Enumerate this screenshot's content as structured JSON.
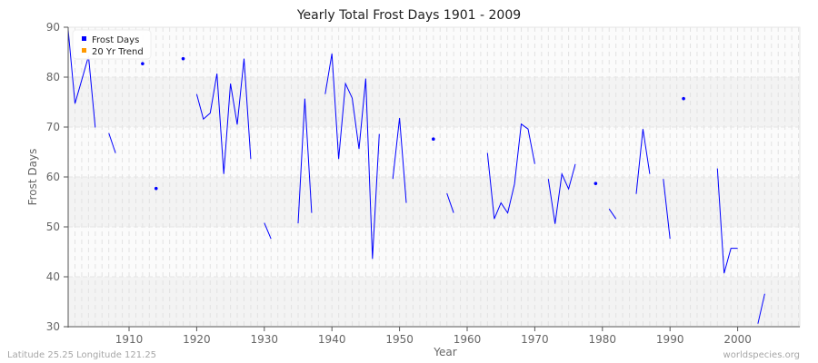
{
  "chart_data": {
    "type": "line",
    "title": "Yearly Total Frost Days 1901 - 2009",
    "xlabel": "Year",
    "ylabel": "Frost Days",
    "xlim": [
      1901,
      2009
    ],
    "ylim": [
      30,
      90
    ],
    "x_ticks": [
      1910,
      1920,
      1930,
      1940,
      1950,
      1960,
      1970,
      1980,
      1990,
      2000
    ],
    "y_ticks": [
      30,
      40,
      50,
      60,
      70,
      80,
      90
    ],
    "grid": true,
    "legend_position": "top-left",
    "legend": [
      {
        "label": "Frost Days",
        "color": "#0000ff"
      },
      {
        "label": "20 Yr Trend",
        "color": "#ff9900"
      }
    ],
    "series": [
      {
        "name": "Frost Days",
        "color": "#0000ff",
        "points": [
          [
            1901,
            89.5
          ],
          [
            1902,
            74.7
          ],
          [
            1903,
            79.4
          ],
          [
            1904,
            84.2
          ],
          [
            1905,
            69.9
          ],
          [
            1906,
            null
          ],
          [
            1907,
            68.8
          ],
          [
            1908,
            64.8
          ],
          [
            1909,
            null
          ],
          [
            1910,
            null
          ],
          [
            1911,
            null
          ],
          [
            1912,
            82.7
          ],
          [
            1913,
            null
          ],
          [
            1914,
            57.7
          ],
          [
            1915,
            null
          ],
          [
            1916,
            null
          ],
          [
            1917,
            null
          ],
          [
            1918,
            83.7
          ],
          [
            1919,
            null
          ],
          [
            1920,
            76.6
          ],
          [
            1921,
            71.6
          ],
          [
            1922,
            72.8
          ],
          [
            1923,
            80.7
          ],
          [
            1924,
            60.6
          ],
          [
            1925,
            78.7
          ],
          [
            1926,
            70.5
          ],
          [
            1927,
            83.7
          ],
          [
            1928,
            63.6
          ],
          [
            1929,
            null
          ],
          [
            1930,
            50.8
          ],
          [
            1931,
            47.6
          ],
          [
            1932,
            null
          ],
          [
            1933,
            null
          ],
          [
            1934,
            null
          ],
          [
            1935,
            50.7
          ],
          [
            1936,
            75.7
          ],
          [
            1937,
            52.8
          ],
          [
            1938,
            null
          ],
          [
            1939,
            76.6
          ],
          [
            1940,
            84.7
          ],
          [
            1941,
            63.6
          ],
          [
            1942,
            78.7
          ],
          [
            1943,
            75.8
          ],
          [
            1944,
            65.6
          ],
          [
            1945,
            79.7
          ],
          [
            1946,
            43.6
          ],
          [
            1947,
            68.6
          ],
          [
            1948,
            null
          ],
          [
            1949,
            59.6
          ],
          [
            1950,
            71.8
          ],
          [
            1951,
            54.8
          ],
          [
            1952,
            null
          ],
          [
            1953,
            null
          ],
          [
            1954,
            null
          ],
          [
            1955,
            67.6
          ],
          [
            1956,
            null
          ],
          [
            1957,
            56.7
          ],
          [
            1958,
            52.8
          ],
          [
            1959,
            null
          ],
          [
            1960,
            null
          ],
          [
            1961,
            null
          ],
          [
            1962,
            null
          ],
          [
            1963,
            64.8
          ],
          [
            1964,
            51.6
          ],
          [
            1965,
            54.8
          ],
          [
            1966,
            52.8
          ],
          [
            1967,
            58.6
          ],
          [
            1968,
            70.6
          ],
          [
            1969,
            69.6
          ],
          [
            1970,
            62.6
          ],
          [
            1971,
            null
          ],
          [
            1972,
            59.6
          ],
          [
            1973,
            50.6
          ],
          [
            1974,
            60.6
          ],
          [
            1975,
            57.6
          ],
          [
            1976,
            62.6
          ],
          [
            1977,
            null
          ],
          [
            1978,
            null
          ],
          [
            1979,
            58.7
          ],
          [
            1980,
            null
          ],
          [
            1981,
            53.6
          ],
          [
            1982,
            51.6
          ],
          [
            1983,
            null
          ],
          [
            1984,
            null
          ],
          [
            1985,
            56.6
          ],
          [
            1986,
            69.6
          ],
          [
            1987,
            60.6
          ],
          [
            1988,
            null
          ],
          [
            1989,
            59.6
          ],
          [
            1990,
            47.6
          ],
          [
            1991,
            null
          ],
          [
            1992,
            75.7
          ],
          [
            1993,
            null
          ],
          [
            1994,
            null
          ],
          [
            1995,
            null
          ],
          [
            1996,
            null
          ],
          [
            1997,
            61.7
          ],
          [
            1998,
            40.7
          ],
          [
            1999,
            45.7
          ],
          [
            2000,
            45.7
          ],
          [
            2001,
            null
          ],
          [
            2002,
            null
          ],
          [
            2003,
            30.6
          ],
          [
            2004,
            36.6
          ]
        ]
      },
      {
        "name": "20 Yr Trend",
        "color": "#ff9900",
        "points": []
      }
    ]
  },
  "footer": {
    "left": "Latitude 25.25 Longitude 121.25",
    "right": "worldspecies.org"
  }
}
